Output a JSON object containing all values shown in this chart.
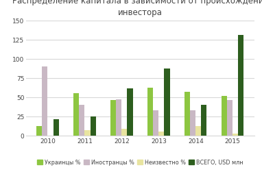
{
  "title": "Распределение капитала в зависимости от происхождения\nинвестора",
  "years": [
    2010,
    2011,
    2012,
    2013,
    2014,
    2015
  ],
  "ukrainians": [
    12,
    55,
    46,
    62,
    57,
    52
  ],
  "foreigners": [
    90,
    40,
    47,
    33,
    33,
    46
  ],
  "unknown": [
    0,
    7,
    9,
    5,
    12,
    3
  ],
  "total_usd": [
    21,
    25,
    61,
    87,
    40,
    131
  ],
  "color_ukrainians": "#8DC641",
  "color_foreigners": "#C9B8C4",
  "color_unknown": "#E8E4A0",
  "color_total": "#2D5E1E",
  "ylim": [
    0,
    150
  ],
  "yticks": [
    0,
    25,
    50,
    75,
    100,
    125,
    150
  ],
  "bar_width": 0.15,
  "legend_labels": [
    "Украинцы %",
    "Иностранцы %",
    "Неизвестно %",
    "ВСЕГО, USD млн"
  ],
  "background_color": "#ffffff",
  "grid_color": "#d8d8d8",
  "text_color": "#444444"
}
